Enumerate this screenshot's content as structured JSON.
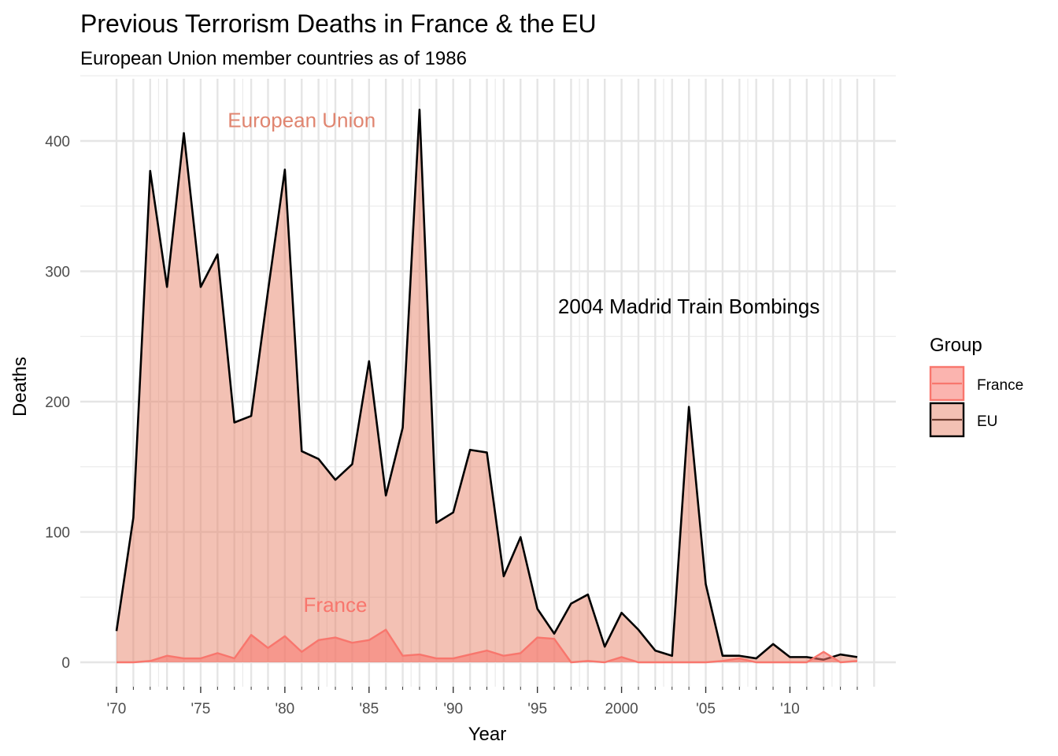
{
  "chart_data": {
    "type": "area",
    "title": "Previous Terrorism Deaths in France & the EU",
    "subtitle": "European Union member countries as of 1986",
    "xlabel": "Year",
    "ylabel": "Deaths",
    "xlim": [
      1970,
      2014
    ],
    "ylim": [
      0,
      425
    ],
    "x_ticks": [
      {
        "value": 1970,
        "label": "'70"
      },
      {
        "value": 1975,
        "label": "'75"
      },
      {
        "value": 1980,
        "label": "'80"
      },
      {
        "value": 1985,
        "label": "'85"
      },
      {
        "value": 1990,
        "label": "'90"
      },
      {
        "value": 1995,
        "label": "'95"
      },
      {
        "value": 2000,
        "label": "2000"
      },
      {
        "value": 2005,
        "label": "'05"
      },
      {
        "value": 2010,
        "label": "'10"
      }
    ],
    "y_ticks": [
      0,
      100,
      200,
      300,
      400
    ],
    "grid": true,
    "legend": {
      "title": "Group",
      "position": "right"
    },
    "x": [
      1970,
      1971,
      1972,
      1973,
      1974,
      1975,
      1976,
      1977,
      1978,
      1979,
      1980,
      1981,
      1982,
      1983,
      1984,
      1985,
      1986,
      1987,
      1988,
      1989,
      1990,
      1991,
      1992,
      1993,
      1994,
      1995,
      1996,
      1997,
      1998,
      1999,
      2000,
      2001,
      2002,
      2003,
      2004,
      2005,
      2006,
      2007,
      2008,
      2009,
      2010,
      2011,
      2012,
      2013,
      2014
    ],
    "series": [
      {
        "name": "France",
        "fill": "#f8766d",
        "stroke": "#f8766d",
        "values": [
          0,
          0,
          1,
          5,
          3,
          3,
          7,
          3,
          21,
          11,
          20,
          8,
          17,
          19,
          15,
          17,
          25,
          5,
          6,
          3,
          3,
          6,
          9,
          5,
          7,
          19,
          18,
          0,
          1,
          0,
          4,
          0,
          0,
          0,
          0,
          0,
          1,
          3,
          0,
          0,
          0,
          0,
          8,
          0,
          1
        ]
      },
      {
        "name": "EU",
        "fill": "#e8836a",
        "stroke": "#000000",
        "values": [
          24,
          111,
          377,
          288,
          406,
          288,
          313,
          184,
          189,
          285,
          378,
          162,
          156,
          140,
          152,
          231,
          128,
          180,
          424,
          107,
          115,
          163,
          161,
          66,
          96,
          41,
          22,
          45,
          52,
          12,
          38,
          25,
          9,
          5,
          196,
          60,
          5,
          5,
          3,
          14,
          4,
          4,
          2,
          6,
          4
        ]
      }
    ],
    "annotations": [
      {
        "text": "European Union",
        "x": 1981,
        "y": 416,
        "color": "#e08570"
      },
      {
        "text": "France",
        "x": 1983,
        "y": 44,
        "color": "#f8766d"
      },
      {
        "text": "2004 Madrid Train Bombings",
        "x": 2004,
        "y": 273,
        "color": "#000000"
      }
    ]
  }
}
